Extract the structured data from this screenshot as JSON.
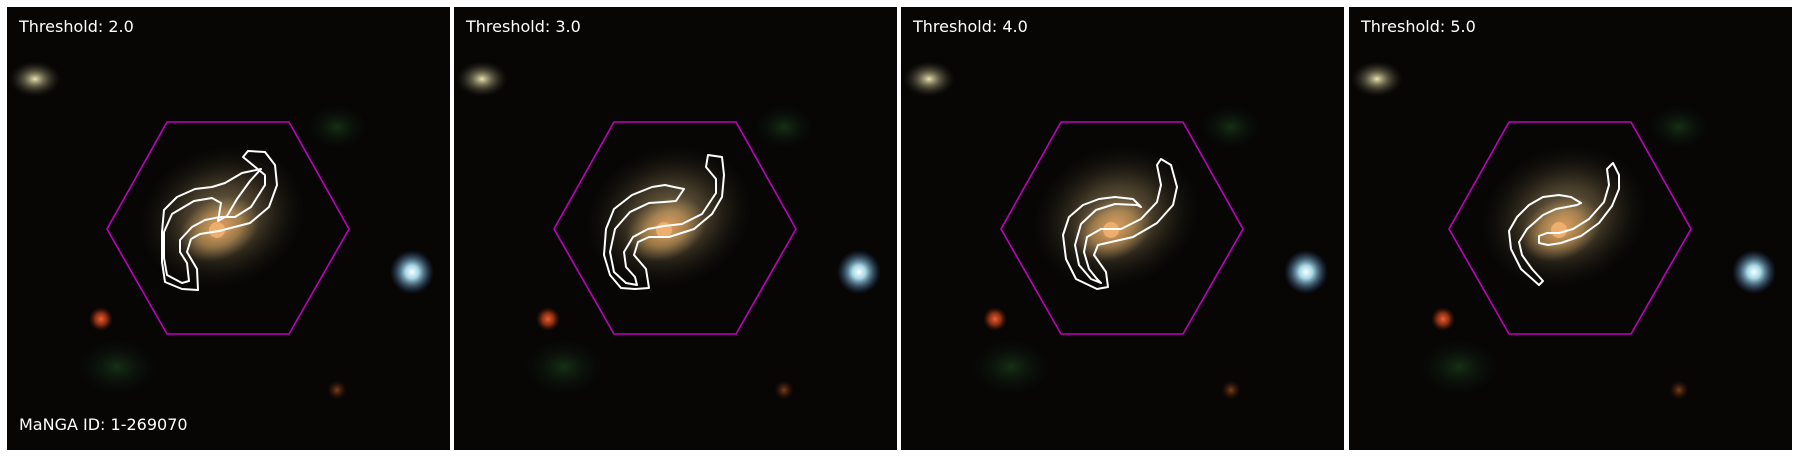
{
  "panels": [
    {
      "threshold_label": "Threshold: 2.0"
    },
    {
      "threshold_label": "Threshold: 3.0"
    },
    {
      "threshold_label": "Threshold: 4.0"
    },
    {
      "threshold_label": "Threshold: 5.0"
    }
  ],
  "manga_id_label": "MaNGA ID: 1-269070",
  "colors": {
    "background_sky": "#070605",
    "hexagon": "#c000c0",
    "contour": "#ffffff",
    "galaxy_core": "#e8a060",
    "galaxy_halo": "#b09a6e",
    "blue_star": "#b8f0ff",
    "red_star": "#c04018"
  },
  "icons": [
    "hexagon-ifu-footprint",
    "spiral-arm-contour"
  ]
}
